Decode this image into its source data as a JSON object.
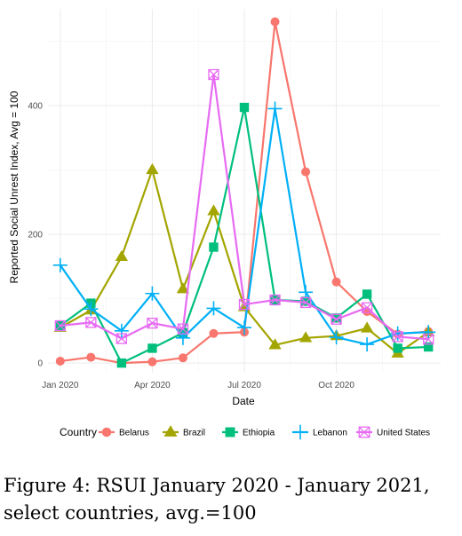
{
  "chart_data": {
    "type": "line",
    "xlabel": "Date",
    "ylabel": "Reported Social Unrest Index, Avg = 100",
    "x": [
      "2020-01",
      "2020-02",
      "2020-03",
      "2020-04",
      "2020-05",
      "2020-06",
      "2020-07",
      "2020-08",
      "2020-09",
      "2020-10",
      "2020-11",
      "2020-12",
      "2021-01"
    ],
    "x_ticks": [
      {
        "date": "2020-01",
        "label": "Jan 2020"
      },
      {
        "date": "2020-04",
        "label": "Apr 2020"
      },
      {
        "date": "2020-07",
        "label": "Jul 2020"
      },
      {
        "date": "2020-10",
        "label": "Oct 2020"
      }
    ],
    "y_ticks": [
      0,
      200,
      400
    ],
    "ylim": [
      -15,
      550
    ],
    "grid": true,
    "legend": {
      "title": "Country",
      "position": "bottom"
    },
    "series": [
      {
        "name": "Belarus",
        "color": "#F8766D",
        "marker": "circle",
        "values": [
          3,
          9,
          0,
          2,
          8,
          46,
          48,
          530,
          297,
          126,
          80,
          45,
          49
        ]
      },
      {
        "name": "Brazil",
        "color": "#A3A500",
        "marker": "triangle",
        "values": [
          55,
          82,
          165,
          300,
          115,
          236,
          87,
          28,
          39,
          42,
          54,
          15,
          48
        ]
      },
      {
        "name": "Ethiopia",
        "color": "#00BF7D",
        "marker": "square",
        "values": [
          58,
          93,
          0,
          23,
          47,
          180,
          397,
          98,
          96,
          70,
          107,
          23,
          25
        ]
      },
      {
        "name": "Lebanon",
        "color": "#00B0F6",
        "marker": "plus",
        "values": [
          152,
          84,
          50,
          108,
          39,
          85,
          55,
          395,
          110,
          40,
          29,
          46,
          48
        ]
      },
      {
        "name": "United States",
        "color": "#E76BF3",
        "marker": "boxcross",
        "values": [
          58,
          63,
          38,
          62,
          53,
          448,
          91,
          98,
          94,
          68,
          86,
          41,
          37
        ]
      }
    ]
  },
  "caption": "Figure 4: RSUI January 2020 - January 2021, select countries, avg.=100"
}
